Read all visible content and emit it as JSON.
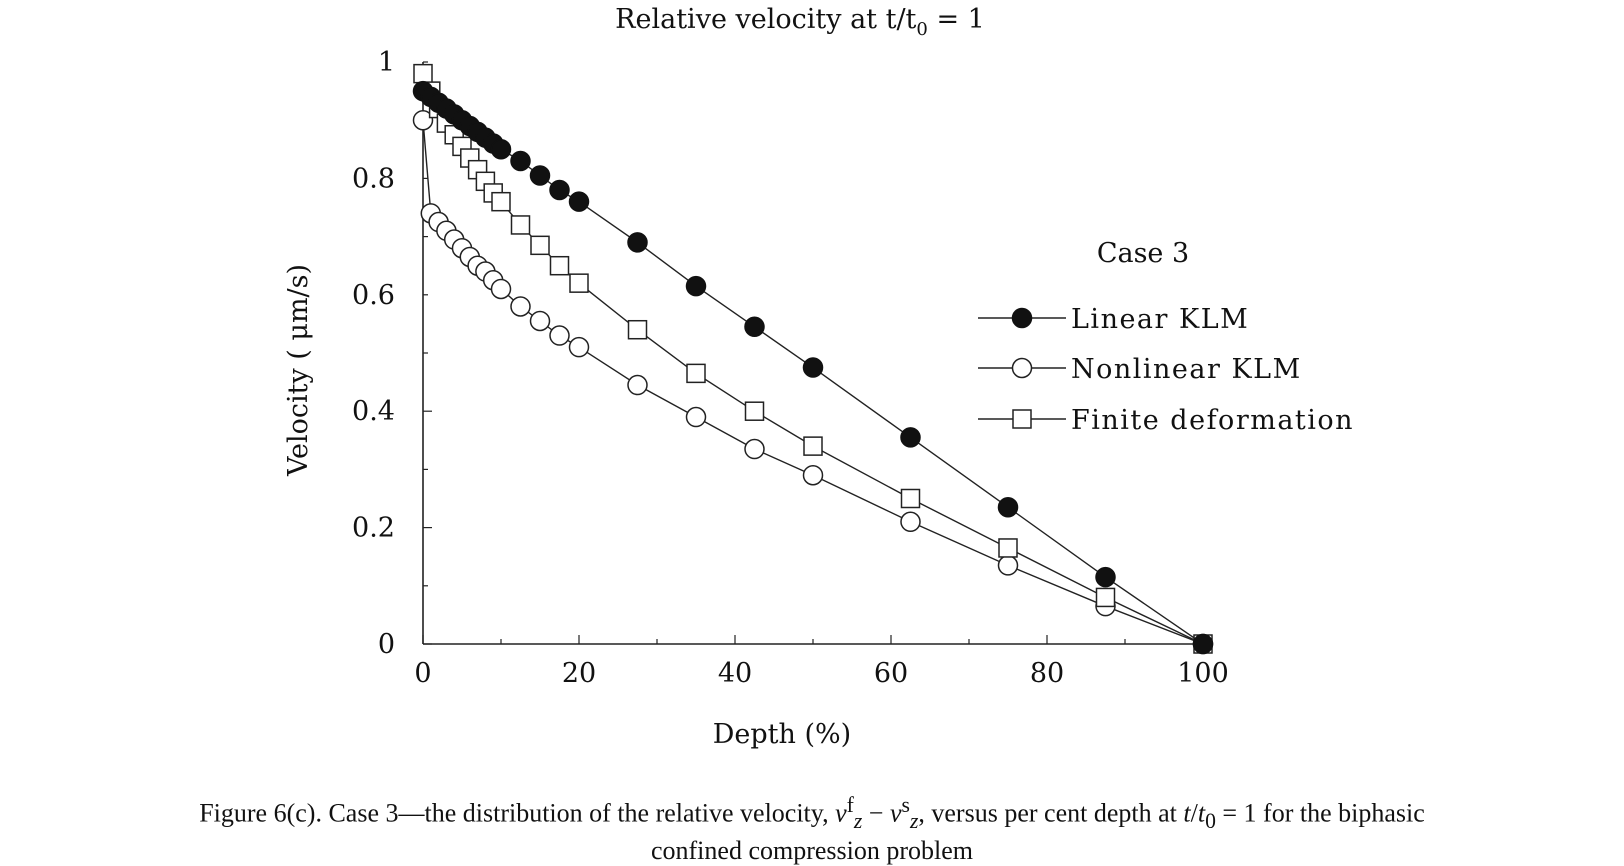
{
  "chart_data": {
    "type": "line",
    "title_main": "Relative velocity at t/t",
    "title_sub": "0",
    "title_tail": " = 1",
    "xlabel": "Depth (%)",
    "ylabel": "Velocity ( μm/s)",
    "xlim": [
      0,
      100
    ],
    "ylim": [
      0,
      1
    ],
    "x_ticks": [
      "0",
      "20",
      "40",
      "60",
      "80",
      "100"
    ],
    "y_ticks": [
      "0",
      "0.2",
      "0.4",
      "0.6",
      "0.8",
      "1"
    ],
    "legend_title": "Case 3",
    "legend_position": "right",
    "grid": false,
    "series": [
      {
        "name": "Linear KLM",
        "marker": "filled-circle",
        "x": [
          0,
          1,
          2,
          3,
          4,
          5,
          6,
          7,
          8,
          9,
          10,
          12.5,
          15,
          17.5,
          20,
          27.5,
          35,
          42.5,
          50,
          62.5,
          75,
          87.5,
          100
        ],
        "y": [
          0.95,
          0.94,
          0.93,
          0.92,
          0.91,
          0.9,
          0.89,
          0.88,
          0.87,
          0.86,
          0.85,
          0.83,
          0.805,
          0.78,
          0.76,
          0.69,
          0.615,
          0.545,
          0.475,
          0.355,
          0.235,
          0.115,
          0
        ]
      },
      {
        "name": "Nonlinear KLM",
        "marker": "open-circle",
        "x": [
          0,
          1,
          2,
          3,
          4,
          5,
          6,
          7,
          8,
          9,
          10,
          12.5,
          15,
          17.5,
          20,
          27.5,
          35,
          42.5,
          50,
          62.5,
          75,
          87.5,
          100
        ],
        "y": [
          0.9,
          0.74,
          0.725,
          0.71,
          0.695,
          0.68,
          0.665,
          0.65,
          0.64,
          0.625,
          0.61,
          0.58,
          0.555,
          0.53,
          0.51,
          0.445,
          0.39,
          0.335,
          0.29,
          0.21,
          0.135,
          0.065,
          0
        ]
      },
      {
        "name": "Finite deformation",
        "marker": "open-square",
        "x": [
          0,
          1,
          2,
          3,
          4,
          5,
          6,
          7,
          8,
          9,
          10,
          12.5,
          15,
          17.5,
          20,
          27.5,
          35,
          42.5,
          50,
          62.5,
          75,
          87.5,
          100
        ],
        "y": [
          0.98,
          0.95,
          0.92,
          0.895,
          0.875,
          0.855,
          0.835,
          0.815,
          0.795,
          0.775,
          0.76,
          0.72,
          0.685,
          0.65,
          0.62,
          0.54,
          0.465,
          0.4,
          0.34,
          0.25,
          0.165,
          0.08,
          0
        ]
      }
    ]
  },
  "caption": {
    "line1_lead": "Figure 6(c). Case 3—the distribution of the relative velocity,",
    "var_v": "v",
    "sup_f": "f",
    "sub_z": "z",
    "minus": "−",
    "sup_s": "s",
    "line1_mid": ", versus per cent depth at",
    "var_t": "t",
    "slash": "/",
    "sub_0": "0",
    "line1_end": " = 1 for the biphasic",
    "line2": "confined compression problem"
  }
}
